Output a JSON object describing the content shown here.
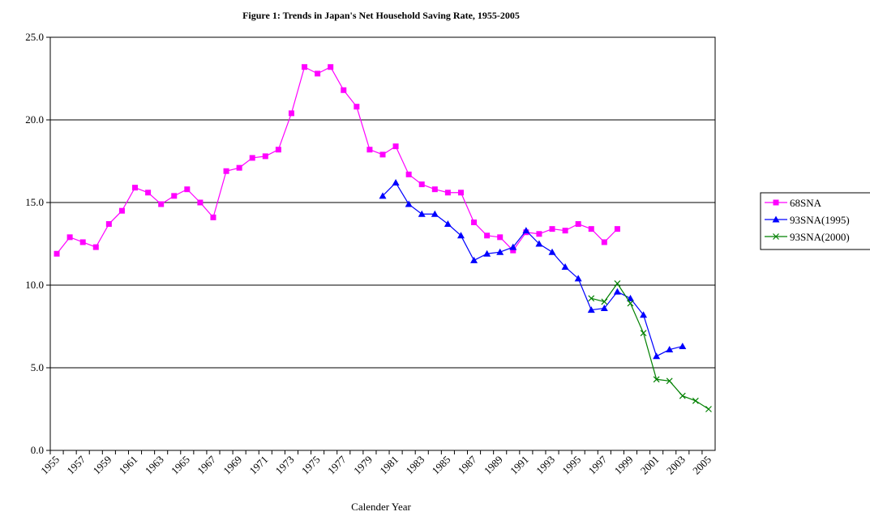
{
  "chart_data": {
    "type": "line",
    "title": "Figure 1: Trends in Japan's Net Household Saving Rate, 1955-2005",
    "x_label": "Calender Year",
    "categories": [
      "1955",
      null,
      "1957",
      null,
      "1959",
      null,
      "1961",
      null,
      "1963",
      null,
      "1965",
      null,
      "1967",
      null,
      "1969",
      null,
      "1971",
      null,
      "1973",
      null,
      "1975",
      null,
      "1977",
      null,
      "1979",
      null,
      "1981",
      null,
      "1983",
      null,
      "1985",
      null,
      "1987",
      null,
      "1989",
      null,
      "1991",
      null,
      "1993",
      null,
      "1995",
      null,
      "1997",
      null,
      "1999",
      null,
      "2001",
      null,
      "2003",
      null,
      "2005"
    ],
    "series": [
      {
        "name": "68SNA",
        "color": "#ff00ff",
        "marker": "square",
        "values": [
          11.9,
          12.9,
          12.6,
          12.3,
          13.7,
          14.5,
          15.9,
          15.6,
          14.9,
          15.4,
          15.8,
          15.0,
          14.1,
          16.9,
          17.1,
          17.7,
          17.8,
          18.2,
          20.4,
          23.2,
          22.8,
          23.2,
          21.8,
          20.8,
          18.2,
          17.9,
          18.4,
          16.7,
          16.1,
          15.8,
          15.6,
          15.6,
          13.8,
          13.0,
          12.9,
          12.1,
          13.2,
          13.1,
          13.4,
          13.3,
          13.7,
          13.4,
          12.6,
          13.4,
          null,
          null,
          null,
          null,
          null,
          null,
          null
        ]
      },
      {
        "name": "93SNA(1995)",
        "color": "#0000ff",
        "marker": "triangle",
        "values": [
          null,
          null,
          null,
          null,
          null,
          null,
          null,
          null,
          null,
          null,
          null,
          null,
          null,
          null,
          null,
          null,
          null,
          null,
          null,
          null,
          null,
          null,
          null,
          null,
          null,
          15.4,
          16.2,
          14.9,
          14.3,
          14.3,
          13.7,
          13.0,
          11.5,
          11.9,
          12.0,
          12.3,
          13.3,
          12.5,
          12.0,
          11.1,
          10.4,
          8.5,
          8.6,
          9.6,
          9.2,
          8.2,
          5.7,
          6.1,
          6.3,
          null,
          null
        ]
      },
      {
        "name": "93SNA(2000)",
        "color": "#008000",
        "marker": "x",
        "values": [
          null,
          null,
          null,
          null,
          null,
          null,
          null,
          null,
          null,
          null,
          null,
          null,
          null,
          null,
          null,
          null,
          null,
          null,
          null,
          null,
          null,
          null,
          null,
          null,
          null,
          null,
          null,
          null,
          null,
          null,
          null,
          null,
          null,
          null,
          null,
          null,
          null,
          null,
          null,
          null,
          null,
          9.2,
          9.0,
          10.1,
          8.9,
          7.1,
          4.3,
          4.2,
          3.3,
          3.0,
          2.5
        ]
      }
    ],
    "ylim": [
      0,
      25
    ],
    "yticks": [
      {
        "value": 0,
        "label": "0.0"
      },
      {
        "value": 5,
        "label": "5.0"
      },
      {
        "value": 10,
        "label": "10.0"
      },
      {
        "value": 15,
        "label": "15.0"
      },
      {
        "value": 20,
        "label": "20.0"
      },
      {
        "value": 25,
        "label": "25.0"
      }
    ],
    "grid": true,
    "legend": "right"
  }
}
